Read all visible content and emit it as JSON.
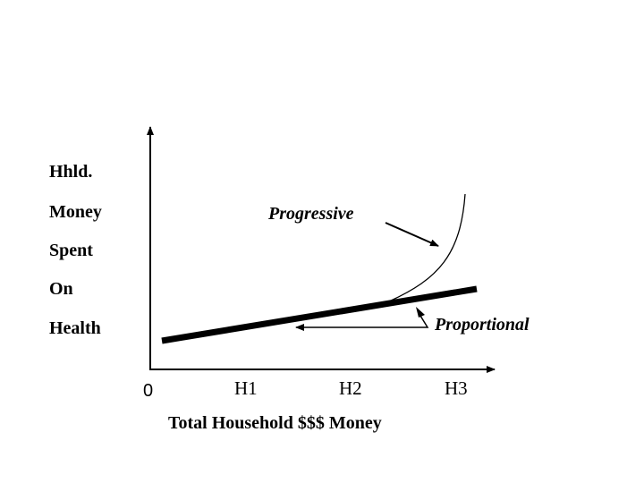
{
  "diagram": {
    "y_axis_label_lines": [
      "Hhld.",
      "Money",
      "Spent",
      "On",
      "Health"
    ],
    "x_axis_label": "Total Household $$$ Money",
    "x_ticks": [
      "0",
      "H1",
      "H2",
      "H3"
    ],
    "curve_labels": {
      "progressive": "Progressive",
      "proportional": "Proportional"
    }
  }
}
